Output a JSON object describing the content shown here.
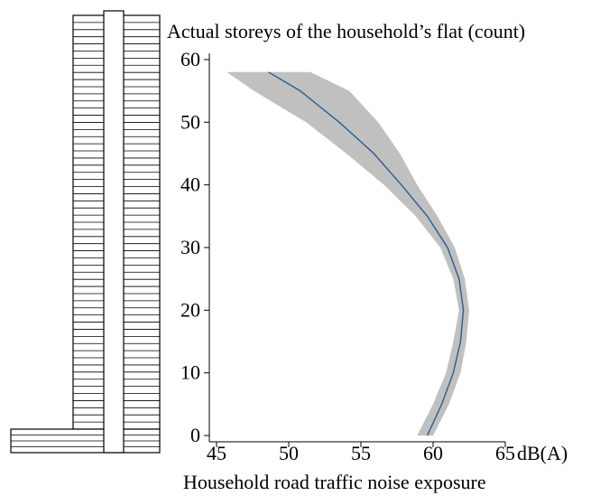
{
  "chart_data": {
    "type": "line",
    "title": "",
    "ylabel": "Actual storeys of the household’s flat (count)",
    "xlabel": "Household road traffic noise exposure",
    "x_unit": "dB(A)",
    "xlim": [
      44.5,
      65
    ],
    "ylim": [
      -1,
      61
    ],
    "x_ticks": [
      45,
      50,
      55,
      60,
      65
    ],
    "y_ticks": [
      0,
      10,
      20,
      30,
      40,
      50,
      60
    ],
    "grid": false,
    "legend": "none",
    "series": [
      {
        "kind": "fitted-line",
        "color": "#2b5d8c",
        "points": [
          {
            "y": 0,
            "x": 59.6
          },
          {
            "y": 5,
            "x": 60.6
          },
          {
            "y": 10,
            "x": 61.4
          },
          {
            "y": 15,
            "x": 61.9
          },
          {
            "y": 20,
            "x": 62.1
          },
          {
            "y": 25,
            "x": 61.8
          },
          {
            "y": 30,
            "x": 61.0
          },
          {
            "y": 35,
            "x": 59.6
          },
          {
            "y": 40,
            "x": 57.8
          },
          {
            "y": 45,
            "x": 55.9
          },
          {
            "y": 50,
            "x": 53.5
          },
          {
            "y": 55,
            "x": 50.8
          },
          {
            "y": 58,
            "x": 48.6
          }
        ]
      },
      {
        "kind": "confidence-band",
        "color": "#c0c0c0",
        "points": [
          {
            "y": 0,
            "lower": 58.9,
            "upper": 60.0
          },
          {
            "y": 5,
            "lower": 60.0,
            "upper": 61.1
          },
          {
            "y": 10,
            "lower": 60.9,
            "upper": 61.9
          },
          {
            "y": 15,
            "lower": 61.4,
            "upper": 62.3
          },
          {
            "y": 20,
            "lower": 61.8,
            "upper": 62.5
          },
          {
            "y": 25,
            "lower": 61.4,
            "upper": 62.2
          },
          {
            "y": 30,
            "lower": 60.5,
            "upper": 61.5
          },
          {
            "y": 35,
            "lower": 58.8,
            "upper": 60.3
          },
          {
            "y": 40,
            "lower": 56.6,
            "upper": 58.9
          },
          {
            "y": 45,
            "lower": 54.0,
            "upper": 57.7
          },
          {
            "y": 50,
            "lower": 51.2,
            "upper": 56.2
          },
          {
            "y": 55,
            "lower": 47.6,
            "upper": 54.2
          },
          {
            "y": 58,
            "lower": 45.7,
            "upper": 51.5
          }
        ]
      }
    ]
  }
}
